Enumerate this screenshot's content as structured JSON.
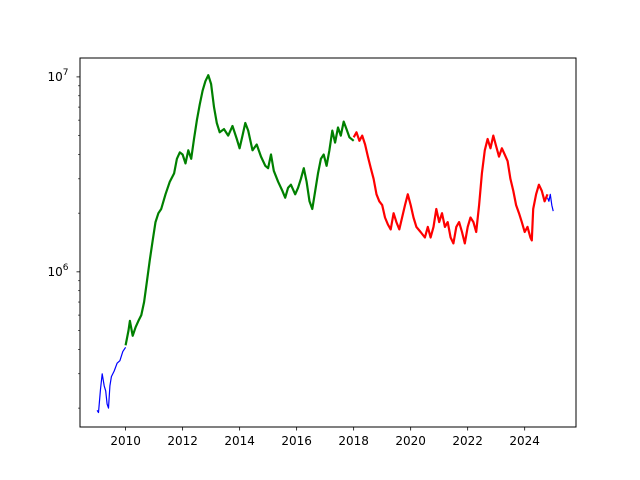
{
  "chart_data": {
    "type": "line",
    "title": "",
    "xlabel": "",
    "ylabel": "",
    "x_scale": "linear",
    "y_scale": "log",
    "xlim": [
      2008.4,
      2025.8
    ],
    "ylim": [
      160000,
      12500000
    ],
    "grid": false,
    "x_ticks": [
      {
        "value": 2010,
        "label": "2010"
      },
      {
        "value": 2012,
        "label": "2012"
      },
      {
        "value": 2014,
        "label": "2014"
      },
      {
        "value": 2016,
        "label": "2016"
      },
      {
        "value": 2018,
        "label": "2018"
      },
      {
        "value": 2020,
        "label": "2020"
      },
      {
        "value": 2022,
        "label": "2022"
      },
      {
        "value": 2024,
        "label": "2024"
      }
    ],
    "y_ticks": [
      {
        "value": 1000000,
        "base": "10",
        "exp": "6"
      },
      {
        "value": 10000000,
        "base": "10",
        "exp": "7"
      }
    ],
    "series": [
      {
        "color": "#0000ff",
        "width": 1.2,
        "points": [
          [
            2009.0,
            195000
          ],
          [
            2009.05,
            190000
          ],
          [
            2009.12,
            250000
          ],
          [
            2009.18,
            300000
          ],
          [
            2009.25,
            260000
          ],
          [
            2009.3,
            245000
          ],
          [
            2009.35,
            210000
          ],
          [
            2009.4,
            200000
          ],
          [
            2009.45,
            260000
          ],
          [
            2009.5,
            290000
          ],
          [
            2009.6,
            310000
          ],
          [
            2009.7,
            340000
          ],
          [
            2009.8,
            350000
          ],
          [
            2009.9,
            390000
          ],
          [
            2010.0,
            410000
          ]
        ]
      },
      {
        "color": "#008000",
        "width": 2.2,
        "points": [
          [
            2010.0,
            420000
          ],
          [
            2010.1,
            500000
          ],
          [
            2010.15,
            560000
          ],
          [
            2010.25,
            470000
          ],
          [
            2010.35,
            520000
          ],
          [
            2010.45,
            560000
          ],
          [
            2010.55,
            600000
          ],
          [
            2010.65,
            700000
          ],
          [
            2010.75,
            900000
          ],
          [
            2010.85,
            1150000
          ],
          [
            2010.95,
            1450000
          ],
          [
            2011.05,
            1800000
          ],
          [
            2011.15,
            2000000
          ],
          [
            2011.25,
            2100000
          ],
          [
            2011.4,
            2500000
          ],
          [
            2011.55,
            2900000
          ],
          [
            2011.7,
            3200000
          ],
          [
            2011.8,
            3800000
          ],
          [
            2011.9,
            4100000
          ],
          [
            2012.0,
            4000000
          ],
          [
            2012.1,
            3600000
          ],
          [
            2012.2,
            4200000
          ],
          [
            2012.3,
            3800000
          ],
          [
            2012.4,
            4800000
          ],
          [
            2012.5,
            6000000
          ],
          [
            2012.6,
            7200000
          ],
          [
            2012.7,
            8500000
          ],
          [
            2012.8,
            9500000
          ],
          [
            2012.9,
            10200000
          ],
          [
            2013.0,
            9200000
          ],
          [
            2013.1,
            7000000
          ],
          [
            2013.2,
            5800000
          ],
          [
            2013.3,
            5200000
          ],
          [
            2013.45,
            5400000
          ],
          [
            2013.6,
            5000000
          ],
          [
            2013.75,
            5600000
          ],
          [
            2013.9,
            4800000
          ],
          [
            2014.0,
            4300000
          ],
          [
            2014.1,
            5000000
          ],
          [
            2014.2,
            5800000
          ],
          [
            2014.3,
            5300000
          ],
          [
            2014.45,
            4200000
          ],
          [
            2014.6,
            4500000
          ],
          [
            2014.75,
            3900000
          ],
          [
            2014.9,
            3500000
          ],
          [
            2015.0,
            3400000
          ],
          [
            2015.1,
            4000000
          ],
          [
            2015.2,
            3300000
          ],
          [
            2015.35,
            2900000
          ],
          [
            2015.5,
            2600000
          ],
          [
            2015.6,
            2400000
          ],
          [
            2015.7,
            2700000
          ],
          [
            2015.8,
            2800000
          ],
          [
            2015.95,
            2500000
          ],
          [
            2016.05,
            2700000
          ],
          [
            2016.15,
            3000000
          ],
          [
            2016.25,
            3400000
          ],
          [
            2016.35,
            2900000
          ],
          [
            2016.45,
            2300000
          ],
          [
            2016.55,
            2100000
          ],
          [
            2016.65,
            2600000
          ],
          [
            2016.75,
            3200000
          ],
          [
            2016.85,
            3800000
          ],
          [
            2016.95,
            4000000
          ],
          [
            2017.05,
            3500000
          ],
          [
            2017.15,
            4200000
          ],
          [
            2017.25,
            5300000
          ],
          [
            2017.35,
            4600000
          ],
          [
            2017.45,
            5500000
          ],
          [
            2017.55,
            5000000
          ],
          [
            2017.65,
            5900000
          ],
          [
            2017.75,
            5400000
          ],
          [
            2017.85,
            4900000
          ],
          [
            2018.0,
            4700000
          ]
        ]
      },
      {
        "color": "#ff0000",
        "width": 2.2,
        "points": [
          [
            2018.0,
            4900000
          ],
          [
            2018.1,
            5200000
          ],
          [
            2018.2,
            4700000
          ],
          [
            2018.3,
            5000000
          ],
          [
            2018.4,
            4500000
          ],
          [
            2018.5,
            3900000
          ],
          [
            2018.6,
            3400000
          ],
          [
            2018.7,
            3000000
          ],
          [
            2018.8,
            2500000
          ],
          [
            2018.9,
            2300000
          ],
          [
            2019.0,
            2200000
          ],
          [
            2019.1,
            1900000
          ],
          [
            2019.2,
            1750000
          ],
          [
            2019.3,
            1650000
          ],
          [
            2019.4,
            2000000
          ],
          [
            2019.5,
            1800000
          ],
          [
            2019.6,
            1650000
          ],
          [
            2019.7,
            1900000
          ],
          [
            2019.8,
            2200000
          ],
          [
            2019.9,
            2500000
          ],
          [
            2020.0,
            2200000
          ],
          [
            2020.1,
            1900000
          ],
          [
            2020.2,
            1700000
          ],
          [
            2020.35,
            1600000
          ],
          [
            2020.5,
            1500000
          ],
          [
            2020.6,
            1700000
          ],
          [
            2020.7,
            1500000
          ],
          [
            2020.8,
            1700000
          ],
          [
            2020.9,
            2100000
          ],
          [
            2021.0,
            1800000
          ],
          [
            2021.1,
            2000000
          ],
          [
            2021.2,
            1700000
          ],
          [
            2021.3,
            1800000
          ],
          [
            2021.4,
            1500000
          ],
          [
            2021.5,
            1400000
          ],
          [
            2021.6,
            1700000
          ],
          [
            2021.7,
            1800000
          ],
          [
            2021.8,
            1600000
          ],
          [
            2021.9,
            1400000
          ],
          [
            2022.0,
            1700000
          ],
          [
            2022.1,
            1900000
          ],
          [
            2022.2,
            1800000
          ],
          [
            2022.3,
            1600000
          ],
          [
            2022.4,
            2200000
          ],
          [
            2022.5,
            3200000
          ],
          [
            2022.6,
            4200000
          ],
          [
            2022.7,
            4800000
          ],
          [
            2022.8,
            4300000
          ],
          [
            2022.9,
            5000000
          ],
          [
            2023.0,
            4400000
          ],
          [
            2023.1,
            3900000
          ],
          [
            2023.2,
            4300000
          ],
          [
            2023.3,
            4000000
          ],
          [
            2023.4,
            3700000
          ],
          [
            2023.5,
            3000000
          ],
          [
            2023.6,
            2600000
          ],
          [
            2023.7,
            2200000
          ],
          [
            2023.8,
            2000000
          ],
          [
            2023.9,
            1800000
          ],
          [
            2024.0,
            1600000
          ],
          [
            2024.1,
            1700000
          ],
          [
            2024.2,
            1500000
          ],
          [
            2024.25,
            1450000
          ],
          [
            2024.3,
            2100000
          ],
          [
            2024.4,
            2500000
          ],
          [
            2024.5,
            2800000
          ],
          [
            2024.6,
            2600000
          ],
          [
            2024.7,
            2300000
          ],
          [
            2024.8,
            2500000
          ]
        ]
      },
      {
        "color": "#0000ff",
        "width": 1.2,
        "points": [
          [
            2024.8,
            2400000
          ],
          [
            2024.85,
            2300000
          ],
          [
            2024.9,
            2500000
          ],
          [
            2024.95,
            2200000
          ],
          [
            2025.0,
            2050000
          ]
        ]
      }
    ]
  }
}
